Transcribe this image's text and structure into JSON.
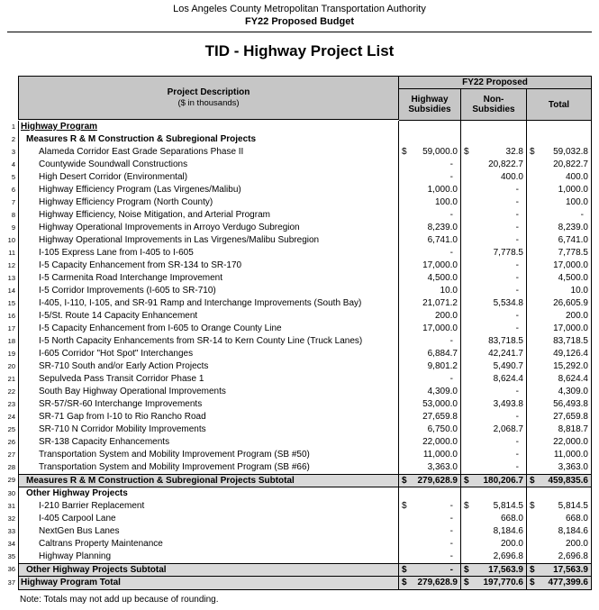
{
  "page_header": {
    "org": "Los Angeles County Metropolitan Transportation Authority",
    "budget": "FY22 Proposed Budget",
    "title": "TID - Highway Project List"
  },
  "table": {
    "header": {
      "description_label": "Project Description",
      "description_sub": "($ in thousands)",
      "group_label": "FY22 Proposed",
      "columns": [
        "Highway Subsidies",
        "Non-Subsidies",
        "Total"
      ]
    },
    "colors": {
      "header_bg": "#c6c6c6",
      "subtotal_bg": "#d9d9d9"
    },
    "rows": [
      {
        "n": 1,
        "label": "Highway Program",
        "style": "section",
        "ind": 0,
        "cells": [
          {
            "d": "",
            "v": ""
          },
          {
            "d": "",
            "v": ""
          },
          {
            "d": "",
            "v": ""
          }
        ]
      },
      {
        "n": 2,
        "label": "Measures R & M Construction & Subregional Projects",
        "style": "subsection",
        "ind": 1,
        "cells": [
          {
            "d": "",
            "v": ""
          },
          {
            "d": "",
            "v": ""
          },
          {
            "d": "",
            "v": ""
          }
        ]
      },
      {
        "n": 3,
        "label": "Alameda Corridor East Grade Separations Phase II",
        "style": "item",
        "ind": 2,
        "cells": [
          {
            "d": "$",
            "v": "59,000.0"
          },
          {
            "d": "$",
            "v": "32.8"
          },
          {
            "d": "$",
            "v": "59,032.8"
          }
        ]
      },
      {
        "n": 4,
        "label": "Countywide Soundwall Constructions",
        "style": "item",
        "ind": 2,
        "cells": [
          {
            "d": "",
            "v": "-"
          },
          {
            "d": "",
            "v": "20,822.7"
          },
          {
            "d": "",
            "v": "20,822.7"
          }
        ]
      },
      {
        "n": 5,
        "label": "High Desert Corridor (Environmental)",
        "style": "item",
        "ind": 2,
        "cells": [
          {
            "d": "",
            "v": "-"
          },
          {
            "d": "",
            "v": "400.0"
          },
          {
            "d": "",
            "v": "400.0"
          }
        ]
      },
      {
        "n": 6,
        "label": "Highway Efficiency Program (Las Virgenes/Malibu)",
        "style": "item",
        "ind": 2,
        "cells": [
          {
            "d": "",
            "v": "1,000.0"
          },
          {
            "d": "",
            "v": "-"
          },
          {
            "d": "",
            "v": "1,000.0"
          }
        ]
      },
      {
        "n": 7,
        "label": "Highway Efficiency Program (North County)",
        "style": "item",
        "ind": 2,
        "cells": [
          {
            "d": "",
            "v": "100.0"
          },
          {
            "d": "",
            "v": "-"
          },
          {
            "d": "",
            "v": "100.0"
          }
        ]
      },
      {
        "n": 8,
        "label": "Highway Efficiency, Noise Mitigation, and Arterial Program",
        "style": "item",
        "ind": 2,
        "cells": [
          {
            "d": "",
            "v": "-"
          },
          {
            "d": "",
            "v": "-"
          },
          {
            "d": "",
            "v": "-"
          }
        ]
      },
      {
        "n": 9,
        "label": "Highway Operational Improvements in Arroyo Verdugo Subregion",
        "style": "item",
        "ind": 2,
        "cells": [
          {
            "d": "",
            "v": "8,239.0"
          },
          {
            "d": "",
            "v": "-"
          },
          {
            "d": "",
            "v": "8,239.0"
          }
        ]
      },
      {
        "n": 10,
        "label": "Highway Operational Improvements in Las Virgenes/Malibu Subregion",
        "style": "item",
        "ind": 2,
        "cells": [
          {
            "d": "",
            "v": "6,741.0"
          },
          {
            "d": "",
            "v": "-"
          },
          {
            "d": "",
            "v": "6,741.0"
          }
        ]
      },
      {
        "n": 11,
        "label": "I-105 Express Lane from I-405 to I-605",
        "style": "item",
        "ind": 2,
        "cells": [
          {
            "d": "",
            "v": "-"
          },
          {
            "d": "",
            "v": "7,778.5"
          },
          {
            "d": "",
            "v": "7,778.5"
          }
        ]
      },
      {
        "n": 12,
        "label": "I-5 Capacity Enhancement from SR-134 to SR-170",
        "style": "item",
        "ind": 2,
        "cells": [
          {
            "d": "",
            "v": "17,000.0"
          },
          {
            "d": "",
            "v": "-"
          },
          {
            "d": "",
            "v": "17,000.0"
          }
        ]
      },
      {
        "n": 13,
        "label": "I-5 Carmenita Road Interchange Improvement",
        "style": "item",
        "ind": 2,
        "cells": [
          {
            "d": "",
            "v": "4,500.0"
          },
          {
            "d": "",
            "v": "-"
          },
          {
            "d": "",
            "v": "4,500.0"
          }
        ]
      },
      {
        "n": 14,
        "label": "I-5 Corridor Improvements (I-605 to SR-710)",
        "style": "item",
        "ind": 2,
        "cells": [
          {
            "d": "",
            "v": "10.0"
          },
          {
            "d": "",
            "v": "-"
          },
          {
            "d": "",
            "v": "10.0"
          }
        ]
      },
      {
        "n": 15,
        "label": "I-405, I-110, I-105, and SR-91 Ramp and Interchange Improvements (South Bay)",
        "style": "item",
        "ind": 2,
        "cells": [
          {
            "d": "",
            "v": "21,071.2"
          },
          {
            "d": "",
            "v": "5,534.8"
          },
          {
            "d": "",
            "v": "26,605.9"
          }
        ]
      },
      {
        "n": 16,
        "label": "I-5/St. Route 14 Capacity Enhancement",
        "style": "item",
        "ind": 2,
        "cells": [
          {
            "d": "",
            "v": "200.0"
          },
          {
            "d": "",
            "v": "-"
          },
          {
            "d": "",
            "v": "200.0"
          }
        ]
      },
      {
        "n": 17,
        "label": "I-5 Capacity Enhancement from I-605 to Orange County Line",
        "style": "item",
        "ind": 2,
        "cells": [
          {
            "d": "",
            "v": "17,000.0"
          },
          {
            "d": "",
            "v": "-"
          },
          {
            "d": "",
            "v": "17,000.0"
          }
        ]
      },
      {
        "n": 18,
        "label": "I-5 North Capacity Enhancements from SR-14 to Kern County Line (Truck Lanes)",
        "style": "item",
        "ind": 2,
        "cells": [
          {
            "d": "",
            "v": "-"
          },
          {
            "d": "",
            "v": "83,718.5"
          },
          {
            "d": "",
            "v": "83,718.5"
          }
        ]
      },
      {
        "n": 19,
        "label": "I-605 Corridor \"Hot Spot\" Interchanges",
        "style": "item",
        "ind": 2,
        "cells": [
          {
            "d": "",
            "v": "6,884.7"
          },
          {
            "d": "",
            "v": "42,241.7"
          },
          {
            "d": "",
            "v": "49,126.4"
          }
        ]
      },
      {
        "n": 20,
        "label": "SR-710 South and/or Early Action Projects",
        "style": "item",
        "ind": 2,
        "cells": [
          {
            "d": "",
            "v": "9,801.2"
          },
          {
            "d": "",
            "v": "5,490.7"
          },
          {
            "d": "",
            "v": "15,292.0"
          }
        ]
      },
      {
        "n": 21,
        "label": "Sepulveda Pass Transit Corridor Phase 1",
        "style": "item",
        "ind": 2,
        "cells": [
          {
            "d": "",
            "v": "-"
          },
          {
            "d": "",
            "v": "8,624.4"
          },
          {
            "d": "",
            "v": "8,624.4"
          }
        ]
      },
      {
        "n": 22,
        "label": "South Bay Highway Operational Improvements",
        "style": "item",
        "ind": 2,
        "cells": [
          {
            "d": "",
            "v": "4,309.0"
          },
          {
            "d": "",
            "v": "-"
          },
          {
            "d": "",
            "v": "4,309.0"
          }
        ]
      },
      {
        "n": 23,
        "label": "SR-57/SR-60 Interchange Improvements",
        "style": "item",
        "ind": 2,
        "cells": [
          {
            "d": "",
            "v": "53,000.0"
          },
          {
            "d": "",
            "v": "3,493.8"
          },
          {
            "d": "",
            "v": "56,493.8"
          }
        ]
      },
      {
        "n": 24,
        "label": "SR-71 Gap from I-10 to Rio Rancho Road",
        "style": "item",
        "ind": 2,
        "cells": [
          {
            "d": "",
            "v": "27,659.8"
          },
          {
            "d": "",
            "v": "-"
          },
          {
            "d": "",
            "v": "27,659.8"
          }
        ]
      },
      {
        "n": 25,
        "label": "SR-710 N Corridor Mobility Improvements",
        "style": "item",
        "ind": 2,
        "cells": [
          {
            "d": "",
            "v": "6,750.0"
          },
          {
            "d": "",
            "v": "2,068.7"
          },
          {
            "d": "",
            "v": "8,818.7"
          }
        ]
      },
      {
        "n": 26,
        "label": "SR-138 Capacity Enhancements",
        "style": "item",
        "ind": 2,
        "cells": [
          {
            "d": "",
            "v": "22,000.0"
          },
          {
            "d": "",
            "v": "-"
          },
          {
            "d": "",
            "v": "22,000.0"
          }
        ]
      },
      {
        "n": 27,
        "label": "Transportation System and Mobility Improvement Program (SB #50)",
        "style": "item",
        "ind": 2,
        "cells": [
          {
            "d": "",
            "v": "11,000.0"
          },
          {
            "d": "",
            "v": "-"
          },
          {
            "d": "",
            "v": "11,000.0"
          }
        ]
      },
      {
        "n": 28,
        "label": "Transportation System and Mobility Improvement Program (SB #66)",
        "style": "item",
        "ind": 2,
        "cells": [
          {
            "d": "",
            "v": "3,363.0"
          },
          {
            "d": "",
            "v": "-"
          },
          {
            "d": "",
            "v": "3,363.0"
          }
        ]
      },
      {
        "n": 29,
        "label": "Measures R & M Construction & Subregional Projects Subtotal",
        "style": "subtotal",
        "ind": 1,
        "cells": [
          {
            "d": "$",
            "v": "279,628.9"
          },
          {
            "d": "$",
            "v": "180,206.7"
          },
          {
            "d": "$",
            "v": "459,835.6"
          }
        ]
      },
      {
        "n": 30,
        "label": "Other Highway Projects",
        "style": "subsection",
        "ind": 1,
        "cells": [
          {
            "d": "",
            "v": ""
          },
          {
            "d": "",
            "v": ""
          },
          {
            "d": "",
            "v": ""
          }
        ]
      },
      {
        "n": 31,
        "label": "I-210 Barrier Replacement",
        "style": "item",
        "ind": 2,
        "cells": [
          {
            "d": "$",
            "v": "-"
          },
          {
            "d": "$",
            "v": "5,814.5"
          },
          {
            "d": "$",
            "v": "5,814.5"
          }
        ]
      },
      {
        "n": 32,
        "label": "I-405 Carpool Lane",
        "style": "item",
        "ind": 2,
        "cells": [
          {
            "d": "",
            "v": "-"
          },
          {
            "d": "",
            "v": "668.0"
          },
          {
            "d": "",
            "v": "668.0"
          }
        ]
      },
      {
        "n": 33,
        "label": "NextGen Bus Lanes",
        "style": "item",
        "ind": 2,
        "cells": [
          {
            "d": "",
            "v": "-"
          },
          {
            "d": "",
            "v": "8,184.6"
          },
          {
            "d": "",
            "v": "8,184.6"
          }
        ]
      },
      {
        "n": 34,
        "label": "Caltrans Property Maintenance",
        "style": "item",
        "ind": 2,
        "cells": [
          {
            "d": "",
            "v": "-"
          },
          {
            "d": "",
            "v": "200.0"
          },
          {
            "d": "",
            "v": "200.0"
          }
        ]
      },
      {
        "n": 35,
        "label": "Highway Planning",
        "style": "item",
        "ind": 2,
        "cells": [
          {
            "d": "",
            "v": "-"
          },
          {
            "d": "",
            "v": "2,696.8"
          },
          {
            "d": "",
            "v": "2,696.8"
          }
        ]
      },
      {
        "n": 36,
        "label": "Other Highway Projects Subtotal",
        "style": "subtotal",
        "ind": 1,
        "cells": [
          {
            "d": "$",
            "v": "-"
          },
          {
            "d": "$",
            "v": "17,563.9"
          },
          {
            "d": "$",
            "v": "17,563.9"
          }
        ]
      },
      {
        "n": 37,
        "label": "Highway Program Total",
        "style": "total",
        "ind": 0,
        "cells": [
          {
            "d": "$",
            "v": "279,628.9"
          },
          {
            "d": "$",
            "v": "197,770.6"
          },
          {
            "d": "$",
            "v": "477,399.6"
          }
        ]
      }
    ]
  },
  "footer_note": "Note: Totals may not add up because of rounding."
}
